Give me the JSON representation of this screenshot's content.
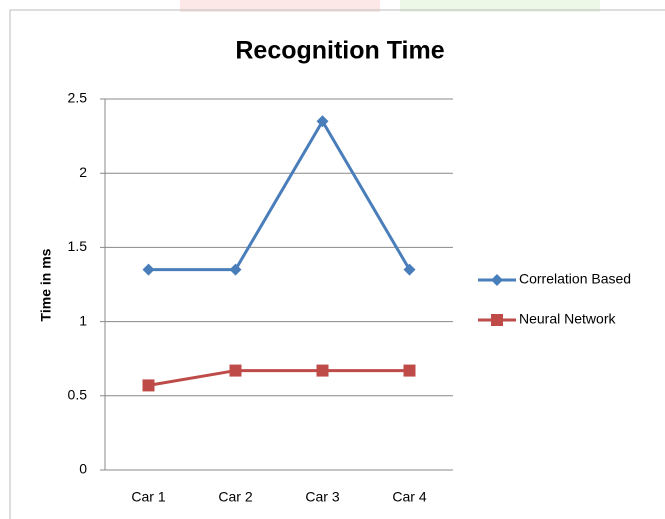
{
  "chart_data": {
    "type": "line",
    "title": "Recognition Time",
    "ylabel": "Time in ms",
    "categories": [
      "Car 1",
      "Car 2",
      "Car 3",
      "Car 4"
    ],
    "series": [
      {
        "name": "Correlation Based",
        "color": "#4a7ebb",
        "marker": "diamond",
        "values": [
          1.35,
          1.35,
          2.35,
          1.35
        ]
      },
      {
        "name": "Neural Network",
        "color": "#be4b48",
        "marker": "square",
        "values": [
          0.57,
          0.67,
          0.67,
          0.67
        ]
      }
    ],
    "ylim": [
      0,
      2.5
    ],
    "yticks": [
      0,
      0.5,
      1,
      1.5,
      2,
      2.5
    ],
    "grid": true,
    "legend": "right"
  }
}
